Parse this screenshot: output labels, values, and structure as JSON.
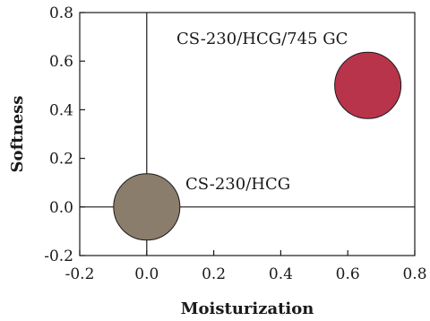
{
  "chart_data": {
    "type": "bubble",
    "xlabel": "Moisturization",
    "ylabel": "Softness",
    "xlim": [
      -0.2,
      0.8
    ],
    "ylim": [
      -0.2,
      0.8
    ],
    "xticks": [
      -0.2,
      0.0,
      0.2,
      0.4,
      0.6,
      0.8
    ],
    "yticks": [
      -0.2,
      0.0,
      0.2,
      0.4,
      0.6,
      0.8
    ],
    "xtick_labels": [
      "-0.2",
      "0.0",
      "0.2",
      "0.4",
      "0.6",
      "0.8"
    ],
    "ytick_labels": [
      "-0.2",
      "0.0",
      "0.2",
      "0.4",
      "0.6",
      "0.8"
    ],
    "grid": false,
    "reference_lines": {
      "x": 0,
      "y": 0
    },
    "points": [
      {
        "label": "CS-230/HCG",
        "x": 0.0,
        "y": 0.0,
        "color": "#8b7d6b"
      },
      {
        "label": "CS-230/HCG/745 GC",
        "x": 0.66,
        "y": 0.5,
        "color": "#b8344a"
      }
    ]
  }
}
